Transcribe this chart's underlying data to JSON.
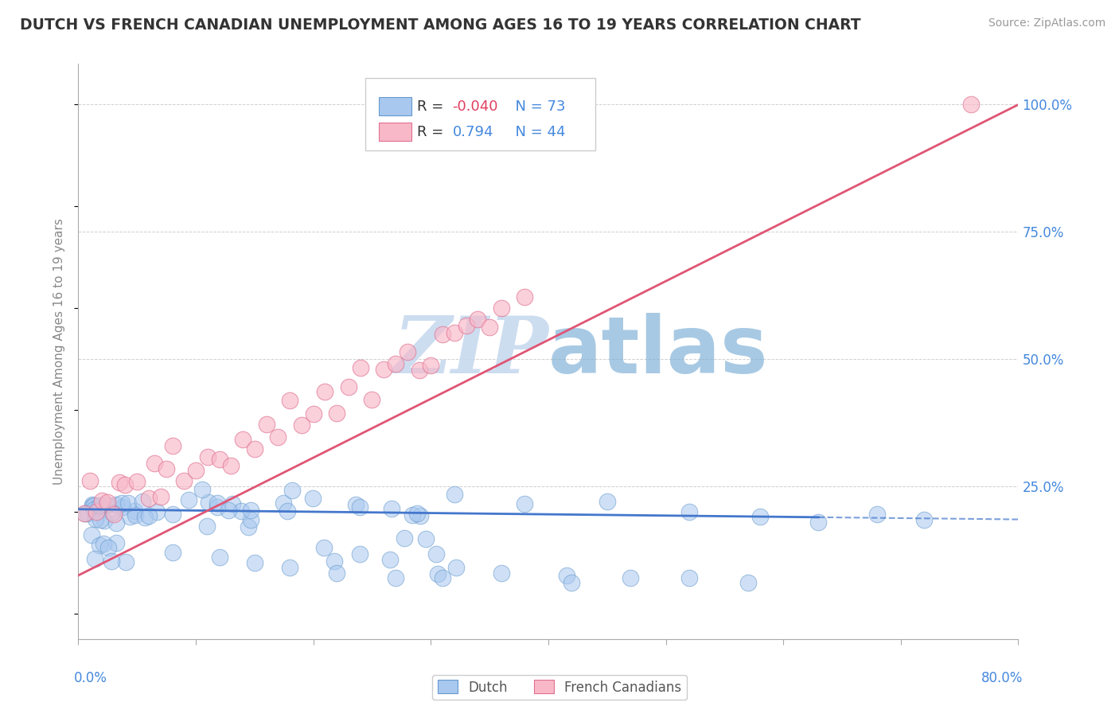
{
  "title": "DUTCH VS FRENCH CANADIAN UNEMPLOYMENT AMONG AGES 16 TO 19 YEARS CORRELATION CHART",
  "source": "Source: ZipAtlas.com",
  "ylabel_label": "Unemployment Among Ages 16 to 19 years",
  "legend_label1": "Dutch",
  "legend_label2": "French Canadians",
  "R1": -0.04,
  "N1": 73,
  "R2": 0.794,
  "N2": 44,
  "color_dutch_fill": "#A8C8F0",
  "color_dutch_edge": "#6699CC",
  "color_french_fill": "#F8B8C8",
  "color_french_edge": "#E07090",
  "color_line_dutch": "#4477CC",
  "color_line_french": "#E05575",
  "color_title": "#333333",
  "color_axis_blue": "#4488DD",
  "color_watermark": "#CCDDF0",
  "color_grid": "#BBBBBB",
  "y_tick_vals": [
    0.25,
    0.5,
    0.75,
    1.0
  ],
  "y_ticks_pct": [
    "25.0%",
    "50.0%",
    "75.0%",
    "100.0%"
  ],
  "dutch_x": [
    0.005,
    0.008,
    0.01,
    0.012,
    0.015,
    0.018,
    0.02,
    0.022,
    0.025,
    0.028,
    0.03,
    0.032,
    0.035,
    0.038,
    0.04,
    0.042,
    0.045,
    0.048,
    0.05,
    0.052,
    0.055,
    0.058,
    0.06,
    0.062,
    0.065,
    0.068,
    0.07,
    0.072,
    0.075,
    0.078,
    0.08,
    0.085,
    0.09,
    0.095,
    0.1,
    0.105,
    0.11,
    0.115,
    0.12,
    0.125,
    0.13,
    0.135,
    0.14,
    0.145,
    0.15,
    0.155,
    0.16,
    0.165,
    0.17,
    0.18,
    0.19,
    0.2,
    0.21,
    0.22,
    0.23,
    0.24,
    0.25,
    0.27,
    0.29,
    0.31,
    0.35,
    0.38,
    0.42,
    0.45,
    0.49,
    0.52,
    0.56,
    0.6,
    0.63,
    0.66,
    0.7,
    0.73,
    0.76
  ],
  "dutch_y": [
    0.195,
    0.2,
    0.19,
    0.205,
    0.185,
    0.21,
    0.2,
    0.195,
    0.215,
    0.19,
    0.205,
    0.2,
    0.21,
    0.185,
    0.195,
    0.22,
    0.2,
    0.19,
    0.205,
    0.215,
    0.195,
    0.2,
    0.21,
    0.185,
    0.2,
    0.215,
    0.195,
    0.205,
    0.19,
    0.21,
    0.2,
    0.195,
    0.205,
    0.21,
    0.2,
    0.195,
    0.205,
    0.2,
    0.215,
    0.195,
    0.2,
    0.205,
    0.21,
    0.195,
    0.2,
    0.21,
    0.195,
    0.205,
    0.2,
    0.195,
    0.205,
    0.2,
    0.195,
    0.205,
    0.2,
    0.195,
    0.2,
    0.205,
    0.195,
    0.2,
    0.22,
    0.215,
    0.21,
    0.205,
    0.2,
    0.195,
    0.19,
    0.195,
    0.2,
    0.19,
    0.195,
    0.19,
    0.185
  ],
  "french_x": [
    0.005,
    0.01,
    0.015,
    0.02,
    0.025,
    0.03,
    0.035,
    0.04,
    0.05,
    0.06,
    0.065,
    0.07,
    0.075,
    0.08,
    0.09,
    0.1,
    0.11,
    0.12,
    0.13,
    0.14,
    0.15,
    0.16,
    0.17,
    0.18,
    0.19,
    0.2,
    0.21,
    0.22,
    0.23,
    0.24,
    0.25,
    0.26,
    0.27,
    0.28,
    0.29,
    0.3,
    0.31,
    0.32,
    0.33,
    0.34,
    0.35,
    0.36,
    0.38,
    0.76
  ],
  "french_y": [
    0.195,
    0.2,
    0.205,
    0.215,
    0.22,
    0.225,
    0.23,
    0.235,
    0.24,
    0.25,
    0.26,
    0.265,
    0.27,
    0.275,
    0.285,
    0.295,
    0.305,
    0.315,
    0.33,
    0.34,
    0.35,
    0.36,
    0.37,
    0.38,
    0.39,
    0.4,
    0.415,
    0.425,
    0.44,
    0.45,
    0.46,
    0.475,
    0.485,
    0.495,
    0.51,
    0.52,
    0.535,
    0.545,
    0.56,
    0.57,
    0.58,
    0.595,
    0.615,
    1.0
  ]
}
